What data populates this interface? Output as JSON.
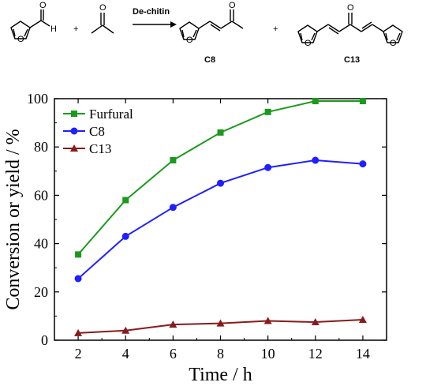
{
  "scheme": {
    "aldehyde_h": "H",
    "plus_1": "+",
    "plus_2": "+",
    "catalyst": "De-chitin",
    "product_1": "C8",
    "product_2": "C13",
    "atom_o": "O"
  },
  "chart_data": {
    "type": "line",
    "title": "",
    "xlabel": "Time / h",
    "ylabel": "Conversion or yield / %",
    "xlim": [
      1,
      15
    ],
    "ylim": [
      0,
      100
    ],
    "xticks": [
      2,
      4,
      6,
      8,
      10,
      12,
      14
    ],
    "yticks": [
      0,
      20,
      40,
      60,
      80,
      100
    ],
    "grid": false,
    "legend_position": "top-left",
    "x": [
      2,
      4,
      6,
      8,
      10,
      12,
      14
    ],
    "series": [
      {
        "name": "Furfural",
        "color": "#1a9a1a",
        "marker": "square",
        "values": [
          35.5,
          58.0,
          74.5,
          86.0,
          94.5,
          99.0,
          99.0
        ]
      },
      {
        "name": "C8",
        "color": "#1f1fff",
        "marker": "circle",
        "values": [
          25.5,
          43.0,
          55.0,
          65.0,
          71.5,
          74.5,
          73.0
        ]
      },
      {
        "name": "C13",
        "color": "#8b1a1a",
        "marker": "triangle",
        "values": [
          3.0,
          4.0,
          6.5,
          7.0,
          8.0,
          7.5,
          8.5
        ]
      }
    ]
  }
}
